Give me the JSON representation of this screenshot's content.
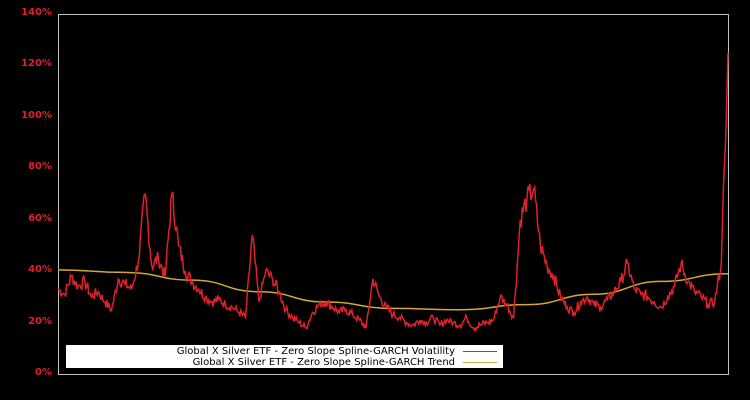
{
  "chart_data": {
    "type": "line",
    "title": "",
    "xlabel": "",
    "ylabel": "",
    "ylim": [
      0,
      140
    ],
    "yticks": [
      "0%",
      "20%",
      "40%",
      "60%",
      "80%",
      "100%",
      "120%",
      "140%"
    ],
    "grid": false,
    "legend_position": "lower left",
    "series": [
      {
        "name": "Global X Silver ETF - Zero Slope Spline-GARCH Volatility",
        "color": "#e0202a",
        "x": [
          0,
          1,
          2,
          3,
          4,
          5,
          6,
          7,
          8,
          9,
          10,
          11,
          12,
          13,
          14,
          15,
          16,
          17,
          18,
          19,
          20,
          21,
          22,
          23,
          24,
          25,
          26,
          27,
          28,
          29,
          30,
          31,
          32,
          33,
          34,
          35,
          36,
          37,
          38,
          39,
          40,
          41,
          42,
          43,
          44,
          45,
          46,
          47,
          48,
          49,
          50,
          51,
          52,
          53,
          54,
          55,
          56,
          57,
          58,
          59,
          60,
          61,
          62,
          63,
          64,
          65,
          66,
          67,
          68,
          69,
          70,
          71,
          72,
          73,
          74,
          75,
          76,
          77,
          78,
          79,
          80,
          81,
          82,
          83,
          84,
          85,
          86,
          87,
          88,
          89,
          90,
          91,
          92,
          93,
          94,
          95,
          96,
          97,
          98,
          99,
          100
        ],
        "values": [
          33,
          31,
          38,
          34,
          36,
          30,
          32,
          28,
          25,
          37,
          35,
          33,
          44,
          70,
          42,
          45,
          38,
          70,
          50,
          40,
          36,
          33,
          30,
          28,
          29,
          27,
          26,
          24,
          22,
          54,
          28,
          40,
          37,
          32,
          25,
          22,
          20,
          18,
          24,
          27,
          28,
          26,
          24,
          25,
          23,
          21,
          18,
          37,
          30,
          26,
          23,
          22,
          20,
          19,
          21,
          20,
          22,
          19,
          21,
          20,
          19,
          22,
          18,
          19,
          20,
          21,
          30,
          27,
          22,
          60,
          68,
          72,
          50,
          42,
          38,
          30,
          26,
          24,
          28,
          30,
          27,
          26,
          29,
          32,
          36,
          43,
          33,
          31,
          30,
          28,
          26,
          30,
          34,
          43,
          36,
          32,
          30,
          27,
          28,
          43,
          125
        ]
      },
      {
        "name": "Global X Silver ETF - Zero Slope Spline-GARCH Trend",
        "color": "#d4a830",
        "x": [
          0,
          10,
          20,
          30,
          40,
          50,
          60,
          70,
          80,
          90,
          100
        ],
        "values": [
          40.5,
          39.5,
          36.5,
          32,
          28,
          25.5,
          25,
          27,
          31,
          36,
          39
        ]
      }
    ]
  },
  "legend": {
    "items": [
      {
        "label": "Global X Silver ETF - Zero Slope Spline-GARCH Volatility",
        "color": "#e0202a"
      },
      {
        "label": "Global X Silver ETF - Zero Slope Spline-GARCH Trend",
        "color": "#d4a830"
      }
    ]
  }
}
